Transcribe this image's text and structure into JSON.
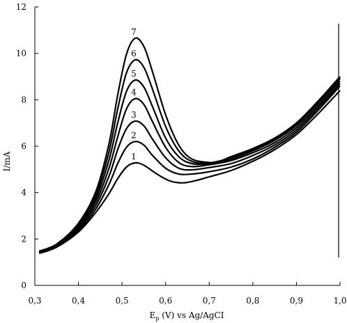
{
  "chart_data": {
    "type": "line",
    "title": "",
    "xlabel_main": "E",
    "xlabel_sub": "p",
    "xlabel_rest": " (V) vs Ag/AgCI",
    "ylabel": "I/mA",
    "xlim": [
      0.3,
      1.0
    ],
    "ylim": [
      0,
      12
    ],
    "x_ticks": [
      {
        "value": 0.3,
        "label": "0,3"
      },
      {
        "value": 0.4,
        "label": "0,4"
      },
      {
        "value": 0.5,
        "label": "0,5"
      },
      {
        "value": 0.6,
        "label": "0,6"
      },
      {
        "value": 0.7,
        "label": "0,7"
      },
      {
        "value": 0.8,
        "label": "0,8"
      },
      {
        "value": 0.9,
        "label": "0,9"
      },
      {
        "value": 1.0,
        "label": "1,0"
      }
    ],
    "y_ticks": [
      {
        "value": 0,
        "label": "0"
      },
      {
        "value": 2,
        "label": "2"
      },
      {
        "value": 4,
        "label": "4"
      },
      {
        "value": 6,
        "label": "6"
      },
      {
        "value": 8,
        "label": "8"
      },
      {
        "value": 10,
        "label": "10"
      },
      {
        "value": 12,
        "label": "12"
      }
    ],
    "grid": false,
    "legend": "none",
    "line_color": "#000000",
    "series": [
      {
        "label": "1",
        "points": [
          [
            0.31,
            1.38
          ],
          [
            0.35,
            1.65
          ],
          [
            0.4,
            2.3
          ],
          [
            0.44,
            3.15
          ],
          [
            0.47,
            3.95
          ],
          [
            0.49,
            4.6
          ],
          [
            0.51,
            5.1
          ],
          [
            0.53,
            5.28
          ],
          [
            0.55,
            5.18
          ],
          [
            0.58,
            4.8
          ],
          [
            0.61,
            4.5
          ],
          [
            0.64,
            4.42
          ],
          [
            0.67,
            4.52
          ],
          [
            0.7,
            4.68
          ],
          [
            0.75,
            4.95
          ],
          [
            0.8,
            5.35
          ],
          [
            0.85,
            5.85
          ],
          [
            0.9,
            6.5
          ],
          [
            0.95,
            7.4
          ],
          [
            1.0,
            8.4
          ]
        ]
      },
      {
        "label": "2",
        "points": [
          [
            0.31,
            1.4
          ],
          [
            0.35,
            1.68
          ],
          [
            0.4,
            2.38
          ],
          [
            0.44,
            3.3
          ],
          [
            0.47,
            4.35
          ],
          [
            0.49,
            5.25
          ],
          [
            0.51,
            5.95
          ],
          [
            0.53,
            6.2
          ],
          [
            0.55,
            6.05
          ],
          [
            0.57,
            5.6
          ],
          [
            0.6,
            5.05
          ],
          [
            0.63,
            4.8
          ],
          [
            0.66,
            4.8
          ],
          [
            0.7,
            4.9
          ],
          [
            0.75,
            5.1
          ],
          [
            0.8,
            5.45
          ],
          [
            0.85,
            5.95
          ],
          [
            0.9,
            6.6
          ],
          [
            0.95,
            7.55
          ],
          [
            1.0,
            8.6
          ]
        ]
      },
      {
        "label": "3",
        "points": [
          [
            0.31,
            1.42
          ],
          [
            0.35,
            1.7
          ],
          [
            0.4,
            2.45
          ],
          [
            0.44,
            3.45
          ],
          [
            0.47,
            4.7
          ],
          [
            0.49,
            5.85
          ],
          [
            0.51,
            6.75
          ],
          [
            0.53,
            7.08
          ],
          [
            0.55,
            6.88
          ],
          [
            0.57,
            6.3
          ],
          [
            0.6,
            5.5
          ],
          [
            0.63,
            5.05
          ],
          [
            0.66,
            4.98
          ],
          [
            0.7,
            5.08
          ],
          [
            0.75,
            5.25
          ],
          [
            0.8,
            5.6
          ],
          [
            0.85,
            6.05
          ],
          [
            0.9,
            6.7
          ],
          [
            0.95,
            7.65
          ],
          [
            1.0,
            8.7
          ]
        ]
      },
      {
        "label": "4",
        "points": [
          [
            0.31,
            1.43
          ],
          [
            0.35,
            1.72
          ],
          [
            0.4,
            2.52
          ],
          [
            0.44,
            3.6
          ],
          [
            0.47,
            5.05
          ],
          [
            0.49,
            6.4
          ],
          [
            0.51,
            7.6
          ],
          [
            0.53,
            8.05
          ],
          [
            0.55,
            7.8
          ],
          [
            0.57,
            7.05
          ],
          [
            0.6,
            5.95
          ],
          [
            0.63,
            5.3
          ],
          [
            0.66,
            5.12
          ],
          [
            0.7,
            5.2
          ],
          [
            0.75,
            5.38
          ],
          [
            0.8,
            5.72
          ],
          [
            0.85,
            6.15
          ],
          [
            0.9,
            6.8
          ],
          [
            0.95,
            7.75
          ],
          [
            1.0,
            8.8
          ]
        ]
      },
      {
        "label": "5",
        "points": [
          [
            0.31,
            1.45
          ],
          [
            0.35,
            1.74
          ],
          [
            0.4,
            2.58
          ],
          [
            0.44,
            3.75
          ],
          [
            0.47,
            5.4
          ],
          [
            0.49,
            7.0
          ],
          [
            0.51,
            8.35
          ],
          [
            0.53,
            8.85
          ],
          [
            0.55,
            8.55
          ],
          [
            0.57,
            7.7
          ],
          [
            0.6,
            6.35
          ],
          [
            0.63,
            5.55
          ],
          [
            0.66,
            5.25
          ],
          [
            0.7,
            5.25
          ],
          [
            0.75,
            5.45
          ],
          [
            0.8,
            5.8
          ],
          [
            0.85,
            6.25
          ],
          [
            0.9,
            6.9
          ],
          [
            0.95,
            7.85
          ],
          [
            1.0,
            8.9
          ]
        ]
      },
      {
        "label": "6",
        "points": [
          [
            0.31,
            1.46
          ],
          [
            0.35,
            1.76
          ],
          [
            0.4,
            2.63
          ],
          [
            0.44,
            3.9
          ],
          [
            0.47,
            5.75
          ],
          [
            0.49,
            7.6
          ],
          [
            0.51,
            9.15
          ],
          [
            0.53,
            9.72
          ],
          [
            0.55,
            9.4
          ],
          [
            0.57,
            8.45
          ],
          [
            0.6,
            6.85
          ],
          [
            0.63,
            5.8
          ],
          [
            0.66,
            5.35
          ],
          [
            0.7,
            5.28
          ],
          [
            0.75,
            5.5
          ],
          [
            0.8,
            5.85
          ],
          [
            0.85,
            6.3
          ],
          [
            0.9,
            6.95
          ],
          [
            0.95,
            7.9
          ],
          [
            1.0,
            8.95
          ]
        ]
      },
      {
        "label": "7",
        "points": [
          [
            0.31,
            1.48
          ],
          [
            0.35,
            1.78
          ],
          [
            0.4,
            2.68
          ],
          [
            0.44,
            4.05
          ],
          [
            0.47,
            6.1
          ],
          [
            0.49,
            8.2
          ],
          [
            0.51,
            9.95
          ],
          [
            0.53,
            10.65
          ],
          [
            0.55,
            10.3
          ],
          [
            0.57,
            9.2
          ],
          [
            0.6,
            7.35
          ],
          [
            0.63,
            6.05
          ],
          [
            0.66,
            5.45
          ],
          [
            0.7,
            5.3
          ],
          [
            0.72,
            5.32
          ],
          [
            0.75,
            5.55
          ],
          [
            0.8,
            5.9
          ],
          [
            0.85,
            6.35
          ],
          [
            0.9,
            7.0
          ],
          [
            0.95,
            7.95
          ],
          [
            1.0,
            9.0
          ]
        ]
      }
    ],
    "curve_labels": [
      {
        "label": "1",
        "x": 0.53,
        "y": 5.28
      },
      {
        "label": "2",
        "x": 0.53,
        "y": 6.2
      },
      {
        "label": "3",
        "x": 0.53,
        "y": 7.08
      },
      {
        "label": "4",
        "x": 0.53,
        "y": 8.05
      },
      {
        "label": "5",
        "x": 0.53,
        "y": 8.85
      },
      {
        "label": "6",
        "x": 0.53,
        "y": 9.72
      },
      {
        "label": "7",
        "x": 0.53,
        "y": 10.65
      }
    ]
  }
}
